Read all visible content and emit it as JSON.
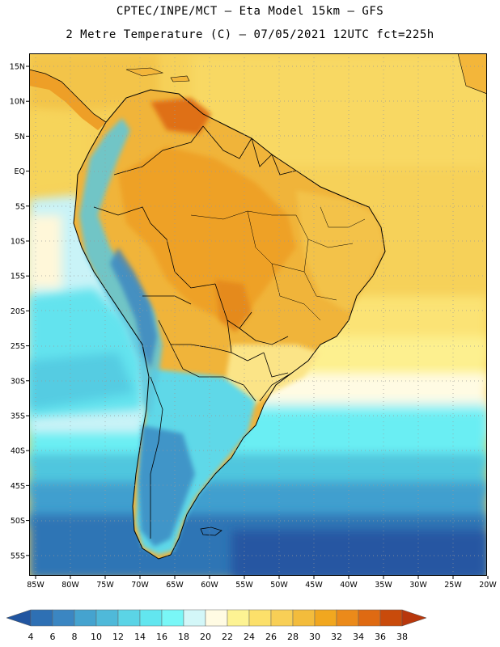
{
  "header": {
    "line1": "CPTEC/INPE/MCT –  Eta Model 15km – GFS",
    "line2": "2 Metre Temperature (C) – 07/05/2021 12UTC fct=225h"
  },
  "map": {
    "lat_labels": [
      "15N",
      "10N",
      "5N",
      "EQ",
      "5S",
      "10S",
      "15S",
      "20S",
      "25S",
      "30S",
      "35S",
      "40S",
      "45S",
      "50S",
      "55S"
    ],
    "lon_labels": [
      "85W",
      "80W",
      "75W",
      "70W",
      "65W",
      "60W",
      "55W",
      "50W",
      "45W",
      "40W",
      "35W",
      "30W",
      "25W",
      "20W"
    ],
    "lat_range": [
      -58,
      16.5
    ],
    "lon_range": [
      -85,
      -20
    ]
  },
  "legend": {
    "labels": [
      "4",
      "6",
      "8",
      "10",
      "12",
      "14",
      "16",
      "18",
      "20",
      "22",
      "24",
      "26",
      "28",
      "30",
      "32",
      "34",
      "36",
      "38"
    ],
    "colors": [
      "#2155a0",
      "#2e70b4",
      "#3b86c2",
      "#45a3cf",
      "#4fb9d9",
      "#5bd4e6",
      "#62e6ef",
      "#79f7f7",
      "#d3f7f8",
      "#fffbe3",
      "#fdf393",
      "#fce06a",
      "#f8cf56",
      "#f3bc3c",
      "#f1a71f",
      "#eb8a1a",
      "#df6a12",
      "#c94b0b",
      "#b8370c"
    ]
  }
}
